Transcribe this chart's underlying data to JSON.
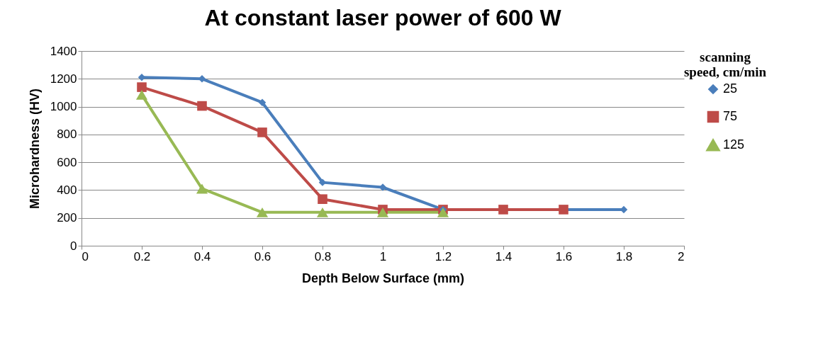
{
  "chart_data": {
    "type": "line",
    "title": "At constant laser power of 600 W",
    "xlabel": "Depth Below Surface (mm)",
    "ylabel": "Microhardness (HV)",
    "legend_title": "scanning speed, cm/min",
    "x": [
      0.2,
      0.4,
      0.6,
      0.8,
      1.0,
      1.2,
      1.4,
      1.6,
      1.8
    ],
    "series": [
      {
        "name": "25",
        "color": "#4a7ebb",
        "marker": "diamond",
        "values": [
          1210,
          1200,
          1030,
          455,
          420,
          260,
          null,
          null,
          260
        ]
      },
      {
        "name": "75",
        "color": "#be4b48",
        "marker": "square",
        "values": [
          1140,
          1005,
          815,
          335,
          260,
          260,
          260,
          260,
          null
        ]
      },
      {
        "name": "125",
        "color": "#98b954",
        "marker": "triangle",
        "values": [
          1085,
          410,
          240,
          240,
          240,
          240,
          null,
          null,
          null
        ]
      }
    ],
    "xlim": [
      0,
      2
    ],
    "xticks": [
      0,
      0.2,
      0.4,
      0.6,
      0.8,
      1,
      1.2,
      1.4,
      1.6,
      1.8,
      2
    ],
    "ylim": [
      0,
      1400
    ],
    "yticks": [
      0,
      200,
      400,
      600,
      800,
      1000,
      1200,
      1400
    ],
    "grid": "y",
    "legend": "right",
    "line_style": "solid"
  }
}
